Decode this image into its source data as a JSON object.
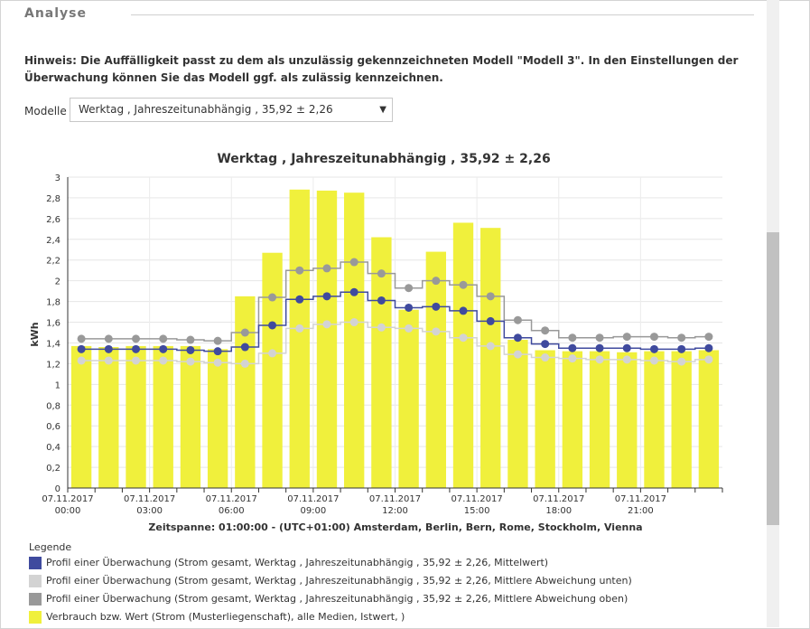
{
  "section": {
    "title": "Analyse"
  },
  "hint": "Hinweis: Die Auffälligkeit passt zu dem als unzulässig gekennzeichneten Modell \"Modell 3\". In den Einstellungen der Überwachung können Sie das Modell ggf. als zulässig kennzeichnen.",
  "models": {
    "label": "Modelle",
    "selected": "Werktag , Jahreszeitunabhängig , 35,92 ± 2,26"
  },
  "legend": {
    "title": "Legende",
    "items": [
      {
        "label": "Profil einer Überwachung (Strom gesamt, Werktag , Jahreszeitunabhängig , 35,92 ± 2,26, Mittelwert)",
        "color": "#3f4a9e"
      },
      {
        "label": "Profil einer Überwachung (Strom gesamt, Werktag , Jahreszeitunabhängig , 35,92 ± 2,26, Mittlere Abweichung unten)",
        "color": "#d3d3d3"
      },
      {
        "label": "Profil einer Überwachung (Strom gesamt, Werktag , Jahreszeitunabhängig , 35,92 ± 2,26, Mittlere Abweichung oben)",
        "color": "#999999"
      },
      {
        "label": "Verbrauch bzw. Wert (Strom (Musterliegenschaft), alle Medien, Istwert, )",
        "color": "#f0f03c"
      }
    ]
  },
  "chart_data": {
    "type": "bar",
    "title": "Werktag , Jahreszeitunabhängig , 35,92 ± 2,26",
    "ylabel": "kWh",
    "xlabel": "Zeitspanne: 01:00:00 - (UTC+01:00) Amsterdam, Berlin, Bern, Rome, Stockholm, Vienna",
    "ylim": [
      0,
      3
    ],
    "yticks": [
      "0",
      "0,2",
      "0,4",
      "0,6",
      "0,8",
      "1",
      "1,2",
      "1,4",
      "1,6",
      "1,8",
      "2",
      "2,2",
      "2,4",
      "2,6",
      "2,8",
      "3"
    ],
    "xticks": [
      {
        "hour": 0,
        "date": "07.11.2017",
        "time": "00:00"
      },
      {
        "hour": 3,
        "date": "07.11.2017",
        "time": "03:00"
      },
      {
        "hour": 6,
        "date": "07.11.2017",
        "time": "06:00"
      },
      {
        "hour": 9,
        "date": "07.11.2017",
        "time": "09:00"
      },
      {
        "hour": 12,
        "date": "07.11.2017",
        "time": "12:00"
      },
      {
        "hour": 15,
        "date": "07.11.2017",
        "time": "15:00"
      },
      {
        "hour": 18,
        "date": "07.11.2017",
        "time": "18:00"
      },
      {
        "hour": 21,
        "date": "07.11.2017",
        "time": "21:00"
      }
    ],
    "grid": true,
    "hours": [
      0,
      1,
      2,
      3,
      4,
      5,
      6,
      7,
      8,
      9,
      10,
      11,
      12,
      13,
      14,
      15,
      16,
      17,
      18,
      19,
      20,
      21,
      22,
      23
    ],
    "series": [
      {
        "key": "consumption",
        "type": "bar",
        "color": "#f0f03c",
        "values": [
          1.37,
          1.36,
          1.37,
          1.37,
          1.37,
          1.34,
          1.85,
          2.27,
          2.88,
          2.87,
          2.85,
          2.42,
          1.72,
          2.28,
          2.56,
          2.51,
          1.43,
          1.33,
          1.32,
          1.32,
          1.31,
          1.32,
          1.32,
          1.33
        ]
      },
      {
        "key": "upper",
        "type": "step",
        "color": "#999999",
        "values": [
          1.44,
          1.44,
          1.44,
          1.44,
          1.43,
          1.42,
          1.5,
          1.84,
          2.1,
          2.12,
          2.18,
          2.07,
          1.93,
          2.0,
          1.96,
          1.85,
          1.62,
          1.52,
          1.45,
          1.45,
          1.46,
          1.46,
          1.45,
          1.46
        ]
      },
      {
        "key": "mean",
        "type": "step",
        "color": "#3f4a9e",
        "values": [
          1.34,
          1.34,
          1.34,
          1.34,
          1.33,
          1.32,
          1.36,
          1.57,
          1.82,
          1.85,
          1.89,
          1.81,
          1.74,
          1.75,
          1.71,
          1.61,
          1.45,
          1.39,
          1.35,
          1.35,
          1.35,
          1.34,
          1.34,
          1.35
        ]
      },
      {
        "key": "lower",
        "type": "step",
        "color": "#d3d3d3",
        "values": [
          1.23,
          1.23,
          1.23,
          1.23,
          1.22,
          1.21,
          1.2,
          1.3,
          1.54,
          1.58,
          1.6,
          1.55,
          1.54,
          1.51,
          1.45,
          1.37,
          1.29,
          1.26,
          1.25,
          1.24,
          1.24,
          1.23,
          1.22,
          1.24
        ]
      }
    ]
  }
}
